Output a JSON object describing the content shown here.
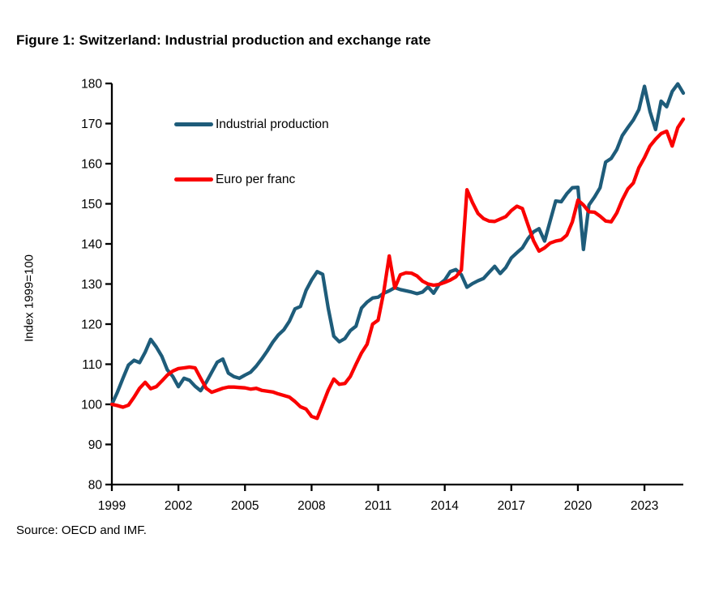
{
  "figure": {
    "title": "Figure 1: Switzerland: Industrial production and exchange rate",
    "y_axis_label": "Index 1999=100",
    "source": "Source: OECD and IMF."
  },
  "legend": [
    {
      "label": "Industrial production",
      "color": "#1e5c7a"
    },
    {
      "label": "Euro per franc",
      "color": "#fa0000"
    }
  ],
  "chart_data": {
    "type": "line",
    "title": "Figure 1: Switzerland: Industrial production and exchange rate",
    "xlabel": "",
    "ylabel": "Index 1999=100",
    "ylim": [
      80,
      180
    ],
    "yticks": [
      80,
      90,
      100,
      110,
      120,
      130,
      140,
      150,
      160,
      170,
      180
    ],
    "xticks": [
      1999,
      2002,
      2005,
      2008,
      2011,
      2014,
      2017,
      2020,
      2023
    ],
    "x_start": 1999,
    "x_step": 0.25,
    "x_end": 2024.75,
    "grid": false,
    "legend_position": "upper-left-inside",
    "series": [
      {
        "name": "Industrial production",
        "color": "#1e5c7a",
        "values": [
          100,
          103,
          106.5,
          109.8,
          111,
          110.4,
          113,
          116.2,
          114.3,
          112,
          108.6,
          106.9,
          104.4,
          106.5,
          106,
          104.5,
          103.4,
          105.5,
          108,
          110.5,
          111.3,
          107.8,
          106.9,
          106.5,
          107.3,
          108,
          109.5,
          111.3,
          113.3,
          115.5,
          117.3,
          118.6,
          120.7,
          123.8,
          124.4,
          128.4,
          131,
          133.1,
          132.4,
          124,
          117,
          115.6,
          116.4,
          118.4,
          119.5,
          124,
          125.5,
          126.5,
          126.7,
          127.7,
          128.3,
          129.1,
          128.6,
          128.3,
          128,
          127.6,
          128,
          129.3,
          127.7,
          129.9,
          131,
          133.1,
          133.6,
          132.3,
          129.2,
          130.1,
          130.8,
          131.4,
          132.9,
          134.4,
          132.6,
          134.1,
          136.5,
          137.8,
          139,
          141.3,
          143,
          143.8,
          140.7,
          145.7,
          150.7,
          150.5,
          152.5,
          154,
          154.1,
          138.6,
          149.7,
          151.7,
          154,
          160.4,
          161.3,
          163.5,
          167,
          169,
          170.9,
          173.5,
          179.3,
          173,
          168.5,
          175.6,
          174.2,
          178,
          179.9,
          177.6
        ]
      },
      {
        "name": "Euro per franc",
        "color": "#fa0000",
        "values": [
          100,
          99.7,
          99.3,
          99.8,
          101.8,
          104,
          105.5,
          103.9,
          104.4,
          105.8,
          107.3,
          108.3,
          108.9,
          109.1,
          109.3,
          109.1,
          106.5,
          104,
          103,
          103.5,
          104,
          104.3,
          104.3,
          104.2,
          104.1,
          103.8,
          104,
          103.5,
          103.3,
          103.1,
          102.6,
          102.2,
          101.8,
          100.7,
          99.4,
          98.8,
          97,
          96.5,
          100,
          103.5,
          106.3,
          105,
          105.2,
          107,
          110,
          112.8,
          115,
          120,
          121,
          128,
          137,
          129,
          132.3,
          132.8,
          132.7,
          132,
          130.7,
          130,
          129.7,
          129.9,
          130.4,
          131,
          131.8,
          133.5,
          153.5,
          150.3,
          147.6,
          146.3,
          145.7,
          145.6,
          146.2,
          146.8,
          148.3,
          149.4,
          148.8,
          144.8,
          140.8,
          138.2,
          139,
          140.2,
          140.7,
          141,
          142.2,
          145.5,
          150.9,
          149.7,
          148,
          147.9,
          146.9,
          145.7,
          145.5,
          147.7,
          151,
          153.7,
          155.2,
          159,
          161.5,
          164.4,
          166.1,
          167.5,
          168.1,
          164.4,
          169,
          171.1
        ]
      }
    ]
  }
}
